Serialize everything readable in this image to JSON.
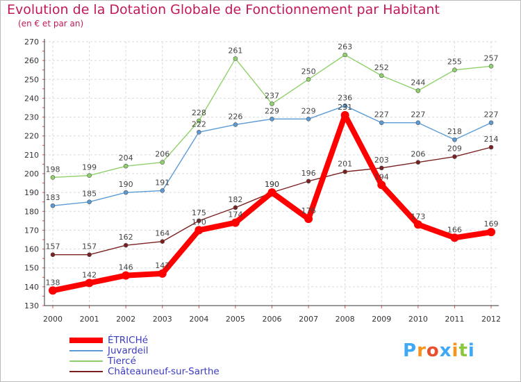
{
  "title": "Evolution de la Dotation Globale de Fonctionnement par Habitant",
  "subtitle": "(en € et par an)",
  "logo": {
    "chars": [
      "P",
      "r",
      "o",
      "x",
      "i",
      "t",
      "i"
    ],
    "colors": [
      "#3fa9f5",
      "#f7941d",
      "#e8502d",
      "#3fa9f5",
      "#f7941d",
      "#8cc63f",
      "#3fa9f5"
    ]
  },
  "chart_data": {
    "type": "line",
    "title": "Evolution de la Dotation Globale de Fonctionnement par Habitant",
    "subtitle": "(en € et par an)",
    "xlabel": "",
    "ylabel": "",
    "categories": [
      "2000",
      "2001",
      "2002",
      "2003",
      "2004",
      "2005",
      "2006",
      "2007",
      "2008",
      "2009",
      "2010",
      "2011",
      "2012"
    ],
    "ylim": [
      130,
      270
    ],
    "yticks": [
      130,
      140,
      150,
      160,
      170,
      180,
      190,
      200,
      210,
      220,
      230,
      240,
      250,
      260,
      270
    ],
    "grid": true,
    "legend_position": "bottom-left",
    "series": [
      {
        "name": "ÉTRICHé",
        "color": "#ff0000",
        "thick": true,
        "values": [
          138,
          142,
          146,
          147,
          170,
          174,
          190,
          176,
          231,
          194,
          173,
          166,
          169
        ]
      },
      {
        "name": "Juvardeil",
        "color": "#5b9bd5",
        "thick": false,
        "values": [
          183,
          185,
          190,
          191,
          222,
          226,
          229,
          229,
          236,
          227,
          227,
          218,
          227
        ]
      },
      {
        "name": "Tiercé",
        "color": "#8fd16b",
        "thick": false,
        "values": [
          198,
          199,
          204,
          206,
          228,
          261,
          237,
          250,
          263,
          252,
          244,
          255,
          257
        ]
      },
      {
        "name": "Châteauneuf-sur-Sarthe",
        "color": "#7a2020",
        "thick": false,
        "values": [
          157,
          157,
          162,
          164,
          175,
          182,
          190,
          196,
          201,
          203,
          206,
          209,
          214
        ]
      }
    ]
  }
}
